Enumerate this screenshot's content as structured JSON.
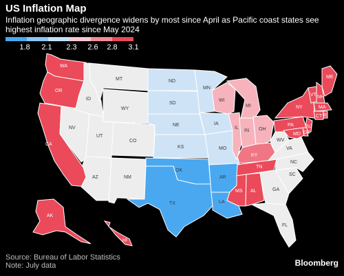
{
  "header": {
    "title": "US Inflation Map",
    "subtitle": "Inflation geographic divergence widens by most since April as Pacific coast states see highest inflation rate since May 2024"
  },
  "legend": {
    "ticks": [
      "1.8",
      "2.1",
      "2.3",
      "2.6",
      "2.8",
      "3.1"
    ],
    "colors": [
      "#4aa8f0",
      "#8cc6f4",
      "#c6e0f7",
      "#f7c7cf",
      "#f28b98",
      "#ea4a5a"
    ]
  },
  "colors": {
    "background": "#000000",
    "neutral_state": "#ededed",
    "light_blue": "#cfe3f6",
    "mid_blue": "#4aa8f0",
    "light_red": "#f6b3bc",
    "mid_red": "#f07684",
    "strong_red": "#ea4a5a"
  },
  "states": [
    {
      "abbr": "WA",
      "level": "strong_red"
    },
    {
      "abbr": "OR",
      "level": "strong_red"
    },
    {
      "abbr": "CA",
      "level": "strong_red"
    },
    {
      "abbr": "AK",
      "level": "strong_red"
    },
    {
      "abbr": "HI",
      "level": "strong_red"
    },
    {
      "abbr": "MT",
      "level": "neutral_state"
    },
    {
      "abbr": "ID",
      "level": "neutral_state"
    },
    {
      "abbr": "WY",
      "level": "neutral_state"
    },
    {
      "abbr": "NV",
      "level": "neutral_state"
    },
    {
      "abbr": "UT",
      "level": "neutral_state"
    },
    {
      "abbr": "CO",
      "level": "neutral_state"
    },
    {
      "abbr": "AZ",
      "level": "neutral_state"
    },
    {
      "abbr": "NM",
      "level": "neutral_state"
    },
    {
      "abbr": "ND",
      "level": "light_blue"
    },
    {
      "abbr": "SD",
      "level": "light_blue"
    },
    {
      "abbr": "NE",
      "level": "light_blue"
    },
    {
      "abbr": "KS",
      "level": "light_blue"
    },
    {
      "abbr": "MN",
      "level": "light_blue"
    },
    {
      "abbr": "IA",
      "level": "light_blue"
    },
    {
      "abbr": "MO",
      "level": "light_blue"
    },
    {
      "abbr": "OK",
      "level": "mid_blue"
    },
    {
      "abbr": "TX",
      "level": "mid_blue"
    },
    {
      "abbr": "AR",
      "level": "mid_blue"
    },
    {
      "abbr": "LA",
      "level": "mid_blue"
    },
    {
      "abbr": "WI",
      "level": "light_red"
    },
    {
      "abbr": "MI",
      "level": "light_red"
    },
    {
      "abbr": "IL",
      "level": "light_red"
    },
    {
      "abbr": "IN",
      "level": "light_red"
    },
    {
      "abbr": "OH",
      "level": "light_red"
    },
    {
      "abbr": "KY",
      "level": "mid_red"
    },
    {
      "abbr": "TN",
      "level": "strong_red"
    },
    {
      "abbr": "MS",
      "level": "strong_red"
    },
    {
      "abbr": "AL",
      "level": "strong_red"
    },
    {
      "abbr": "WV",
      "level": "neutral_state"
    },
    {
      "abbr": "VA",
      "level": "neutral_state"
    },
    {
      "abbr": "NC",
      "level": "neutral_state"
    },
    {
      "abbr": "SC",
      "level": "neutral_state"
    },
    {
      "abbr": "GA",
      "level": "neutral_state"
    },
    {
      "abbr": "FL",
      "level": "neutral_state"
    },
    {
      "abbr": "PA",
      "level": "strong_red"
    },
    {
      "abbr": "NY",
      "level": "strong_red"
    },
    {
      "abbr": "NJ",
      "level": "strong_red"
    },
    {
      "abbr": "MD",
      "level": "strong_red"
    },
    {
      "abbr": "DE",
      "level": "strong_red"
    },
    {
      "abbr": "CT",
      "level": "strong_red"
    },
    {
      "abbr": "RI",
      "level": "strong_red"
    },
    {
      "abbr": "MA",
      "level": "strong_red"
    },
    {
      "abbr": "VT",
      "level": "strong_red"
    },
    {
      "abbr": "NH",
      "level": "strong_red"
    },
    {
      "abbr": "ME",
      "level": "strong_red"
    }
  ],
  "footer": {
    "source": "Source: Bureau of Labor Statistics",
    "note": "Note: July data",
    "brand": "Bloomberg"
  }
}
